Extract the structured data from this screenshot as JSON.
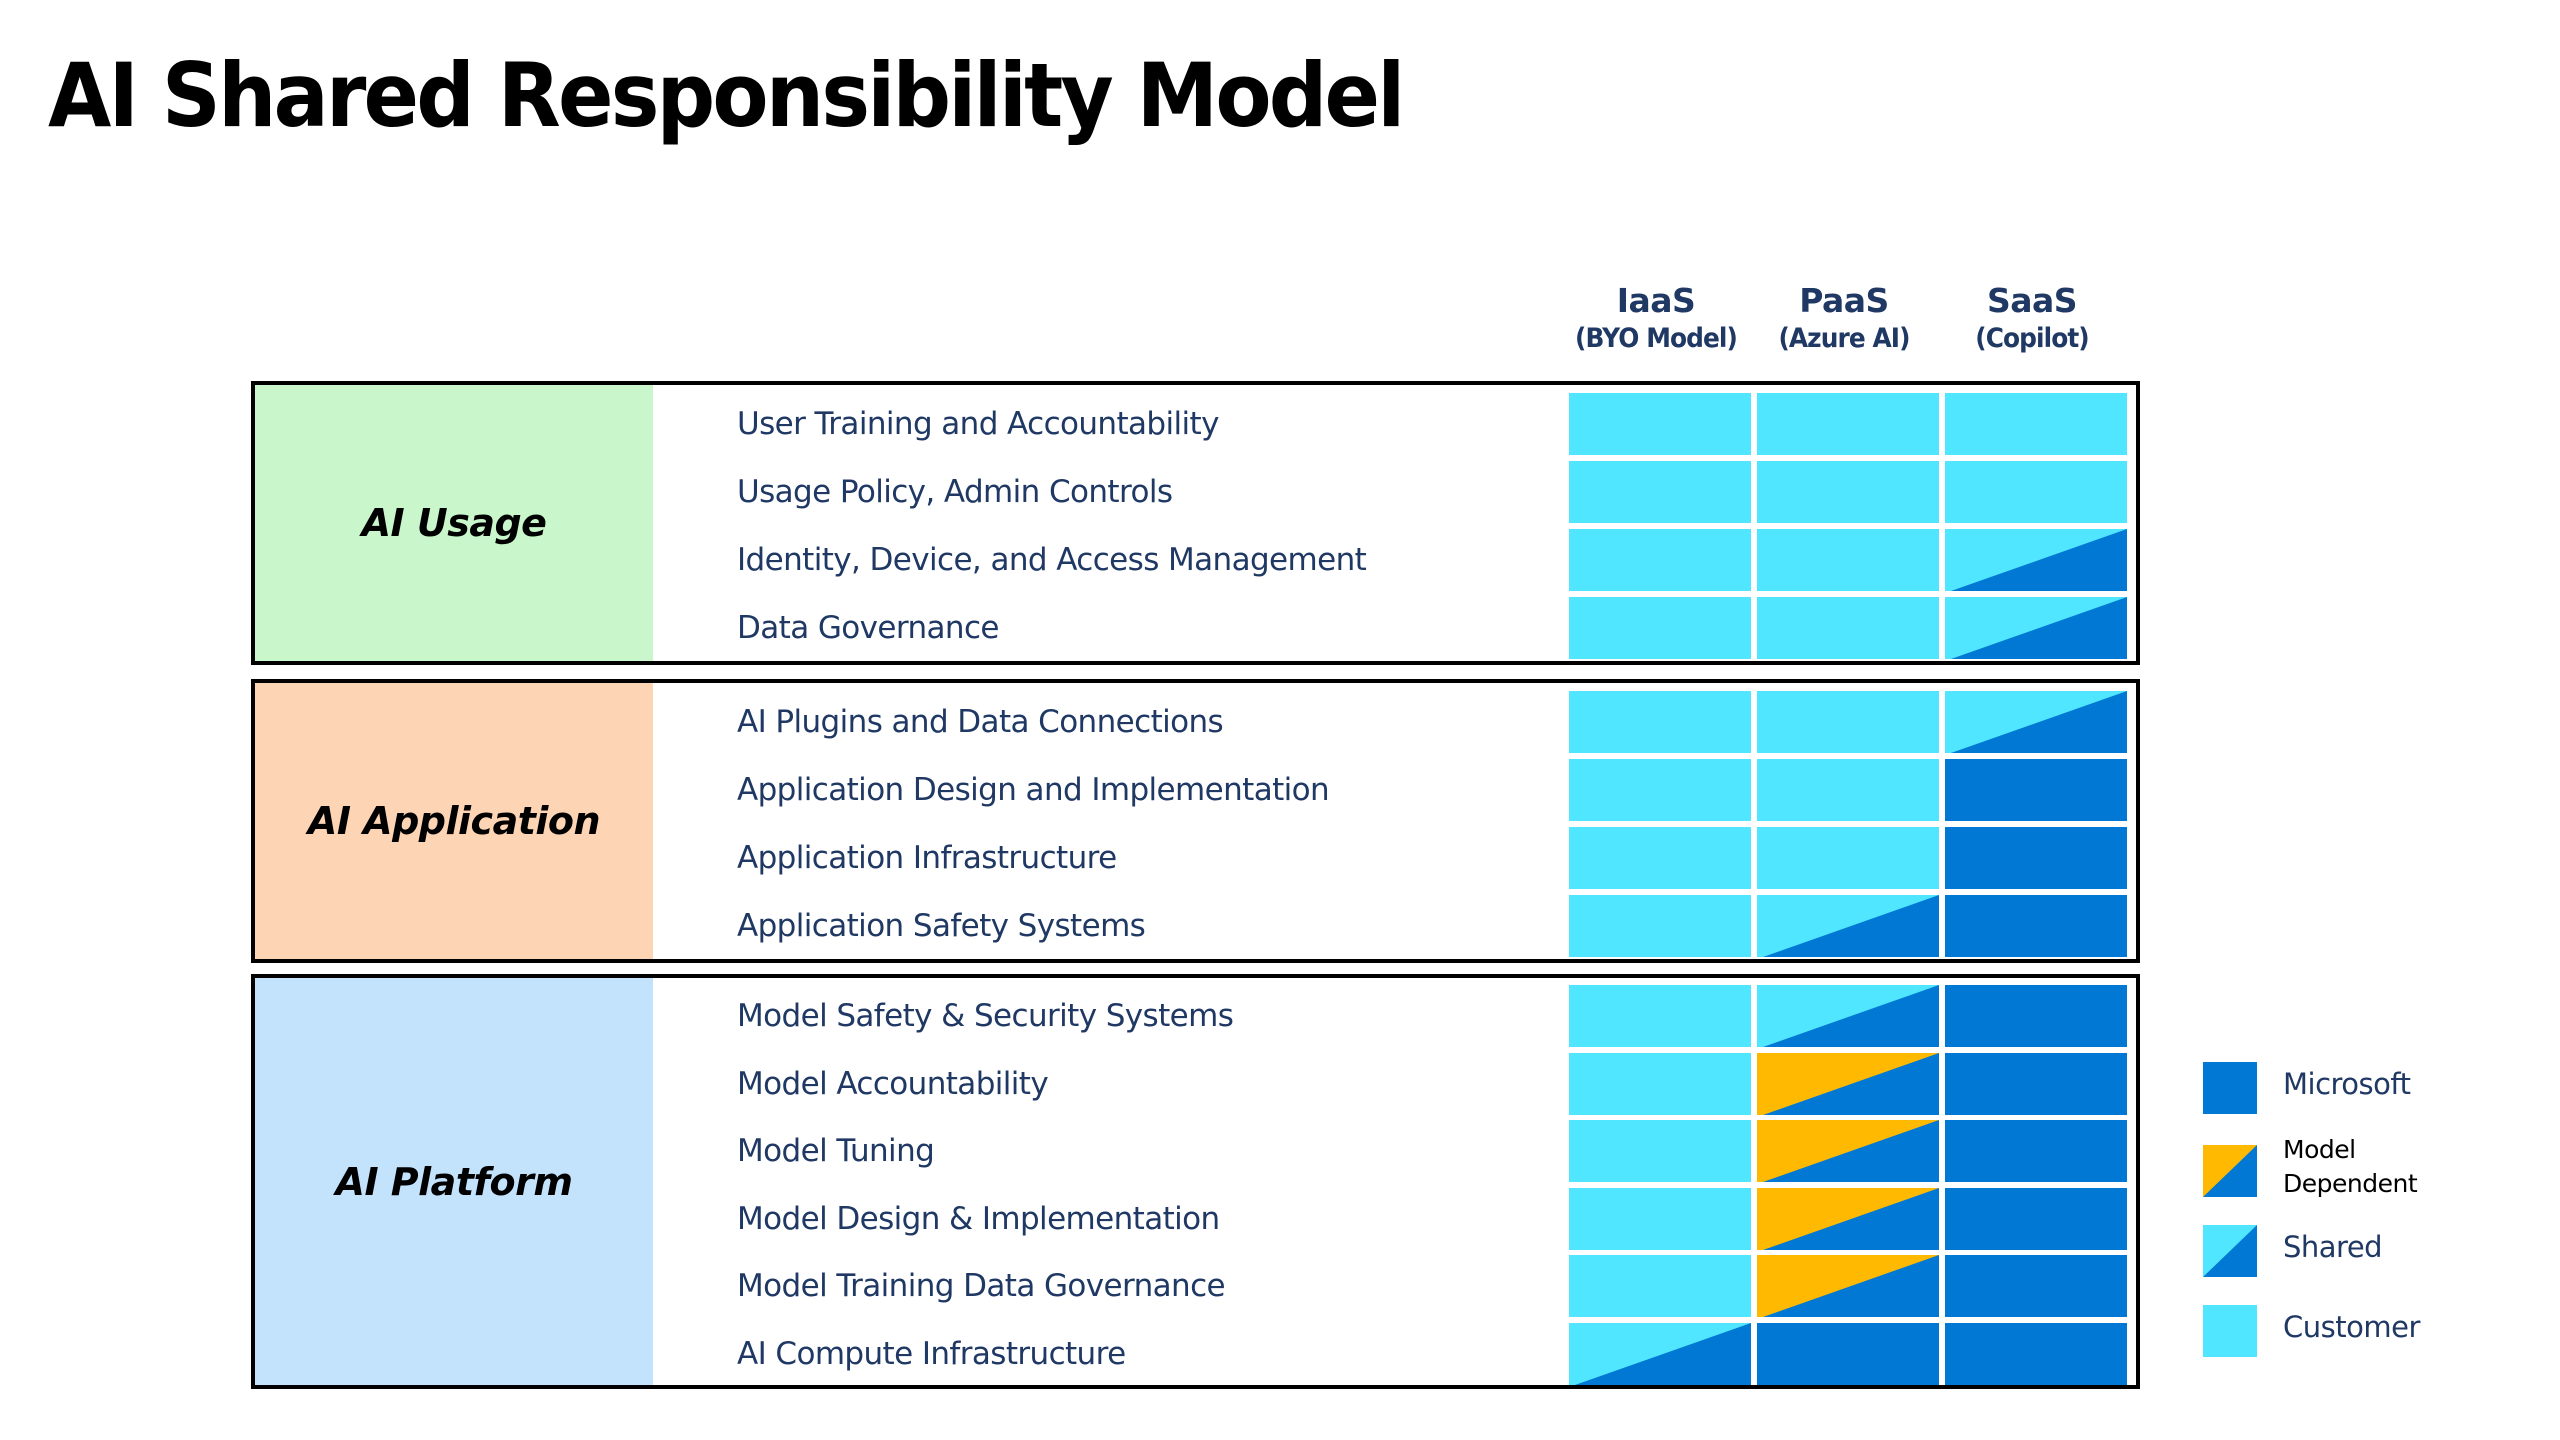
{
  "title": "AI Shared Responsibility Model",
  "colors": {
    "microsoft": "#0078d4",
    "customer": "#50e6ff",
    "model_dependent": "#ffb900",
    "text": "#1f3864",
    "usage_bg": "#c9f7cb",
    "application_bg": "#fdd4b4",
    "platform_bg": "#c3e3fd"
  },
  "columns": [
    {
      "name": "IaaS",
      "sub": "(BYO Model)"
    },
    {
      "name": "PaaS",
      "sub": "(Azure AI)"
    },
    {
      "name": "SaaS",
      "sub": "(Copilot)"
    }
  ],
  "sections": [
    {
      "label": "AI Usage",
      "bg_key": "usage_bg",
      "rows": [
        {
          "label": "User Training and Accountability",
          "cells": [
            "customer",
            "customer",
            "customer"
          ]
        },
        {
          "label": "Usage Policy, Admin Controls",
          "cells": [
            "customer",
            "customer",
            "customer"
          ]
        },
        {
          "label": "Identity, Device, and Access Management",
          "cells": [
            "customer",
            "customer",
            "shared"
          ]
        },
        {
          "label": "Data Governance",
          "cells": [
            "customer",
            "customer",
            "shared"
          ]
        }
      ]
    },
    {
      "label": "AI Application",
      "bg_key": "application_bg",
      "rows": [
        {
          "label": "AI Plugins and Data Connections",
          "cells": [
            "customer",
            "customer",
            "shared"
          ]
        },
        {
          "label": "Application Design and Implementation",
          "cells": [
            "customer",
            "customer",
            "microsoft"
          ]
        },
        {
          "label": "Application Infrastructure",
          "cells": [
            "customer",
            "customer",
            "microsoft"
          ]
        },
        {
          "label": "Application Safety Systems",
          "cells": [
            "customer",
            "shared",
            "microsoft"
          ]
        }
      ]
    },
    {
      "label": "AI Platform",
      "bg_key": "platform_bg",
      "rows": [
        {
          "label": "Model Safety & Security Systems",
          "cells": [
            "customer",
            "shared",
            "microsoft"
          ]
        },
        {
          "label": "Model Accountability",
          "cells": [
            "customer",
            "model_dependent",
            "microsoft"
          ]
        },
        {
          "label": "Model Tuning",
          "cells": [
            "customer",
            "model_dependent",
            "microsoft"
          ]
        },
        {
          "label": "Model Design & Implementation",
          "cells": [
            "customer",
            "model_dependent",
            "microsoft"
          ]
        },
        {
          "label": "Model Training Data Governance",
          "cells": [
            "customer",
            "model_dependent",
            "microsoft"
          ]
        },
        {
          "label": "AI Compute Infrastructure",
          "cells": [
            "shared",
            "microsoft",
            "microsoft"
          ]
        }
      ]
    }
  ],
  "legend": [
    {
      "key": "microsoft",
      "label": "Microsoft"
    },
    {
      "key": "model_dependent",
      "label_lines": [
        "Model",
        "Dependent"
      ]
    },
    {
      "key": "shared",
      "label": "Shared"
    },
    {
      "key": "customer",
      "label": "Customer"
    }
  ]
}
